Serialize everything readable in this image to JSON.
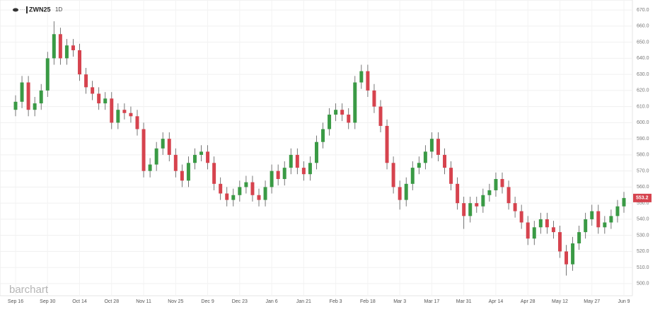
{
  "chart_data": {
    "type": "candlestick",
    "symbol": "ZWN25",
    "interval": "1D",
    "watermark": "barchart",
    "up_color": "#3a9a45",
    "down_color": "#d6434e",
    "grid": true,
    "ylim": [
      496,
      672
    ],
    "yticks": [
      {
        "value": 500,
        "label": "500.0"
      },
      {
        "value": 510,
        "label": "510.0"
      },
      {
        "value": 520,
        "label": "520.0"
      },
      {
        "value": 530,
        "label": "530.0"
      },
      {
        "value": 540,
        "label": "540.0"
      },
      {
        "value": 550,
        "label": "550.0"
      },
      {
        "value": 560,
        "label": "560.0"
      },
      {
        "value": 570,
        "label": "570.0"
      },
      {
        "value": 580,
        "label": "580.0"
      },
      {
        "value": 590,
        "label": "590.0"
      },
      {
        "value": 600,
        "label": "600.0"
      },
      {
        "value": 610,
        "label": "610.0"
      },
      {
        "value": 620,
        "label": "620.0"
      },
      {
        "value": 630,
        "label": "630.0"
      },
      {
        "value": 640,
        "label": "640.0"
      },
      {
        "value": 650,
        "label": "650.0"
      },
      {
        "value": 660,
        "label": "660.0"
      },
      {
        "value": 670,
        "label": "670.0"
      }
    ],
    "categories": [
      "Sep 16",
      null,
      null,
      null,
      null,
      "Sep 30",
      null,
      null,
      null,
      null,
      "Oct 14",
      null,
      null,
      null,
      null,
      "Oct 28",
      null,
      null,
      null,
      null,
      "Nov 11",
      null,
      null,
      null,
      null,
      "Nov 25",
      null,
      null,
      null,
      null,
      "Dec 9",
      null,
      null,
      null,
      null,
      "Dec 23",
      null,
      null,
      null,
      null,
      "Jan 6",
      null,
      null,
      null,
      null,
      "Jan 21",
      null,
      null,
      null,
      null,
      "Feb 3",
      null,
      null,
      null,
      null,
      "Feb 18",
      null,
      null,
      null,
      null,
      "Mar 3",
      null,
      null,
      null,
      null,
      "Mar 17",
      null,
      null,
      null,
      null,
      "Mar 31",
      null,
      null,
      null,
      null,
      "Apr 14",
      null,
      null,
      null,
      null,
      "Apr 28",
      null,
      null,
      null,
      null,
      "May 12",
      null,
      null,
      null,
      null,
      "May 27",
      null,
      null,
      null,
      null,
      "Jun 9"
    ],
    "open": [
      608,
      613,
      625,
      608,
      612,
      620,
      640,
      655,
      640,
      648,
      645,
      630,
      622,
      618,
      612,
      615,
      600,
      608,
      606,
      604,
      596,
      570,
      574,
      584,
      590,
      580,
      570,
      564,
      575,
      580,
      582,
      575,
      562,
      556,
      552,
      555,
      560,
      563,
      555,
      552,
      560,
      570,
      565,
      572,
      580,
      572,
      568,
      575,
      588,
      596,
      605,
      608,
      605,
      600,
      625,
      632,
      620,
      610,
      598,
      575,
      560,
      552,
      562,
      572,
      575,
      582,
      590,
      580,
      572,
      562,
      550,
      542,
      550,
      548,
      555,
      558,
      565,
      560,
      550,
      545,
      538,
      528,
      535,
      540,
      535,
      532,
      520,
      512,
      525,
      532,
      540,
      545,
      535,
      538,
      542,
      548
    ],
    "high": [
      617,
      629,
      629,
      616,
      624,
      644,
      663,
      659,
      652,
      652,
      649,
      634,
      626,
      622,
      619,
      619,
      612,
      612,
      610,
      608,
      600,
      578,
      588,
      594,
      594,
      584,
      574,
      579,
      584,
      586,
      586,
      579,
      566,
      560,
      559,
      564,
      567,
      567,
      559,
      564,
      574,
      574,
      576,
      584,
      584,
      576,
      579,
      592,
      600,
      609,
      612,
      612,
      609,
      629,
      636,
      636,
      624,
      614,
      602,
      579,
      564,
      566,
      576,
      579,
      586,
      594,
      594,
      584,
      576,
      566,
      554,
      554,
      554,
      559,
      562,
      569,
      569,
      564,
      554,
      549,
      542,
      539,
      544,
      544,
      539,
      536,
      524,
      529,
      536,
      544,
      549,
      549,
      542,
      546,
      552,
      557
    ],
    "low": [
      604,
      609,
      604,
      604,
      608,
      616,
      636,
      636,
      636,
      641,
      626,
      618,
      614,
      608,
      608,
      596,
      596,
      602,
      600,
      592,
      566,
      566,
      570,
      580,
      576,
      566,
      560,
      560,
      571,
      576,
      571,
      558,
      552,
      548,
      548,
      551,
      556,
      551,
      548,
      548,
      556,
      561,
      561,
      568,
      568,
      564,
      564,
      571,
      584,
      592,
      601,
      601,
      596,
      596,
      621,
      616,
      606,
      594,
      571,
      556,
      546,
      548,
      558,
      568,
      571,
      578,
      576,
      568,
      558,
      546,
      534,
      538,
      544,
      544,
      551,
      554,
      556,
      546,
      541,
      534,
      524,
      524,
      531,
      531,
      528,
      516,
      505,
      508,
      521,
      528,
      536,
      531,
      531,
      534,
      538,
      544
    ],
    "close": [
      613,
      625,
      608,
      612,
      620,
      640,
      655,
      640,
      648,
      645,
      630,
      622,
      618,
      612,
      615,
      600,
      608,
      606,
      604,
      596,
      570,
      574,
      584,
      590,
      580,
      570,
      564,
      575,
      580,
      582,
      575,
      562,
      556,
      552,
      555,
      560,
      563,
      555,
      552,
      560,
      570,
      565,
      572,
      580,
      572,
      568,
      575,
      588,
      596,
      605,
      608,
      605,
      600,
      625,
      632,
      620,
      610,
      598,
      575,
      560,
      552,
      562,
      572,
      575,
      582,
      590,
      580,
      572,
      562,
      550,
      542,
      550,
      548,
      555,
      558,
      565,
      560,
      550,
      545,
      538,
      528,
      535,
      540,
      535,
      532,
      520,
      512,
      525,
      532,
      540,
      545,
      535,
      538,
      542,
      548,
      553.2
    ]
  }
}
